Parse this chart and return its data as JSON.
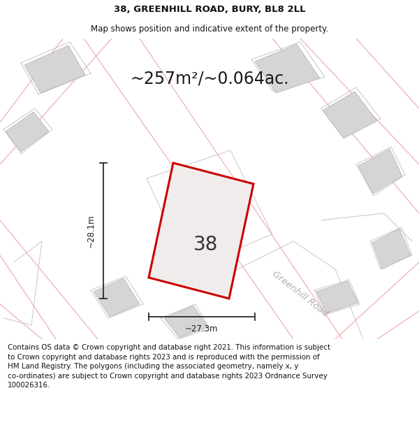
{
  "title_line1": "38, GREENHILL ROAD, BURY, BL8 2LL",
  "title_line2": "Map shows position and indicative extent of the property.",
  "area_label": "~257m²/~0.064ac.",
  "width_label": "~27.3m",
  "height_label": "~28.1m",
  "property_number": "38",
  "road_label": "Greenhill Road",
  "footer_text": "Contains OS data © Crown copyright and database right 2021. This information is subject\nto Crown copyright and database rights 2023 and is reproduced with the permission of\nHM Land Registry. The polygons (including the associated geometry, namely x, y\nco-ordinates) are subject to Crown copyright and database rights 2023 Ordnance Survey\n100026316.",
  "bg_color": "#ffffff",
  "map_bg_color": "#f2f0f0",
  "property_fill": "#f0ecec",
  "property_edge": "#cc0000",
  "building_fill": "#d6d4d4",
  "building_edge": "#b0aeae",
  "road_color": "#f0b8b8",
  "road_lw": 1.0,
  "gray_line_color": "#c8c6c6",
  "dim_line_color": "#2a2a2a",
  "title_fontsize": 9.5,
  "subtitle_fontsize": 8.5,
  "area_fontsize": 17,
  "label_fontsize": 8.5,
  "number_fontsize": 20,
  "road_label_fontsize": 9.5,
  "footer_fontsize": 7.4,
  "title_color": "#111111",
  "footer_color": "#111111"
}
